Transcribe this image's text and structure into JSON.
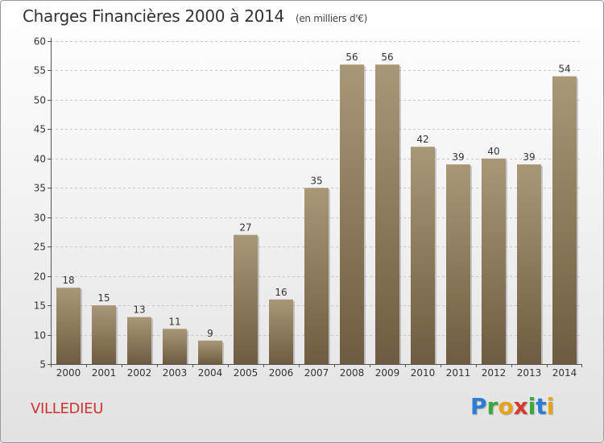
{
  "header": {
    "title": "Charges Financières 2000 à 2014",
    "subtitle": "(en milliers d'€)"
  },
  "commune": "VILLEDIEU",
  "logo": {
    "text": "Proxiti",
    "letters": [
      {
        "ch": "P",
        "color": "#2a7fd4"
      },
      {
        "ch": "r",
        "color": "#3aa83a"
      },
      {
        "ch": "o",
        "color": "#e8a21a"
      },
      {
        "ch": "x",
        "color": "#d63a2a"
      },
      {
        "ch": "i",
        "color": "#3aa83a"
      },
      {
        "ch": "t",
        "color": "#2a7fd4"
      },
      {
        "ch": "i",
        "color": "#e8a21a"
      }
    ]
  },
  "colors": {
    "bar_top": "#a89878",
    "bar_bottom": "#6e5c40",
    "grid": "#c8c8c8",
    "axis": "#555555",
    "title": "#333333",
    "commune": "#cc3333"
  },
  "chart_data": {
    "type": "bar",
    "title": "Charges Financières 2000 à 2014",
    "subtitle": "(en milliers d'€)",
    "categories": [
      "2000",
      "2001",
      "2002",
      "2003",
      "2004",
      "2005",
      "2006",
      "2007",
      "2008",
      "2009",
      "2010",
      "2011",
      "2012",
      "2013",
      "2014"
    ],
    "values": [
      18,
      15,
      13,
      11,
      9,
      27,
      16,
      35,
      56,
      56,
      42,
      39,
      40,
      39,
      54
    ],
    "ylim": [
      5,
      60
    ],
    "yticks": [
      5,
      10,
      15,
      20,
      25,
      30,
      35,
      40,
      45,
      50,
      55,
      60
    ],
    "grid": true,
    "data_labels": true
  }
}
